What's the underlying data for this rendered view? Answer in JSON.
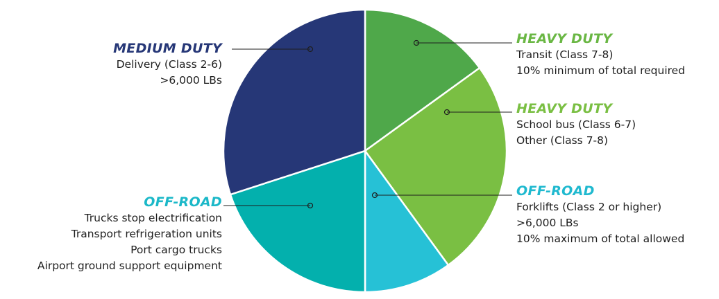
{
  "chart_data": {
    "type": "pie",
    "slices": [
      {
        "heading": "HEAVY DUTY",
        "lines": [
          "Transit (Class 7-8)",
          "10% minimum of total required"
        ],
        "value": 15,
        "color": "#4fa84a",
        "heading_color": "#6ab744"
      },
      {
        "heading": "HEAVY DUTY",
        "lines": [
          "School bus (Class 6-7)",
          "Other (Class 7-8)"
        ],
        "value": 25,
        "color": "#7abf43",
        "heading_color": "#7abf43"
      },
      {
        "heading": "OFF-ROAD",
        "lines": [
          "Forklifts (Class 2 or higher)",
          ">6,000 LBs",
          "10% maximum of total allowed"
        ],
        "value": 10,
        "color": "#26c1d6",
        "heading_color": "#1fb9cf"
      },
      {
        "heading": "OFF-ROAD",
        "lines": [
          "Trucks stop electrification",
          "Transport refrigeration units",
          "Port cargo trucks",
          "Airport ground support equipment"
        ],
        "value": 20,
        "color": "#03b0ad",
        "heading_color": "#1bb8c8"
      },
      {
        "heading": "MEDIUM DUTY",
        "lines": [
          "Delivery (Class 2-6)",
          ">6,000 LBs"
        ],
        "value": 30,
        "color": "#263777",
        "heading_color": "#263777"
      }
    ]
  }
}
